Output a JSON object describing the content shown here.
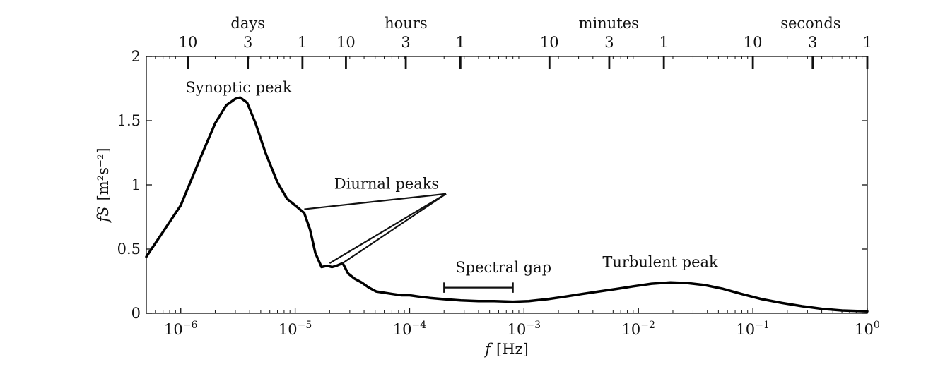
{
  "chart_data": {
    "type": "line",
    "xscale": "log",
    "xlim": [
      5e-07,
      1
    ],
    "ylim": [
      0,
      2
    ],
    "grid": false,
    "xlabel_var": "f",
    "xlabel_unit": "[Hz]",
    "ylabel_var": "fS",
    "ylabel_unit": "[m²s⁻²]",
    "x_ticks": [
      1e-06,
      1e-05,
      0.0001,
      0.001,
      0.01,
      0.1,
      1
    ],
    "x_tick_labels": [
      {
        "base": "10",
        "exp": "−6"
      },
      {
        "base": "10",
        "exp": "−5"
      },
      {
        "base": "10",
        "exp": "−4"
      },
      {
        "base": "10",
        "exp": "−3"
      },
      {
        "base": "10",
        "exp": "−2"
      },
      {
        "base": "10",
        "exp": "−1"
      },
      {
        "base": "10",
        "exp": "0"
      }
    ],
    "y_ticks": [
      0,
      0.5,
      1,
      1.5,
      2
    ],
    "y_tick_labels": [
      "0",
      "0.5",
      "1",
      "1.5",
      "2"
    ],
    "top_axis": {
      "units": [
        {
          "label": "days",
          "x": 3.86e-06
        },
        {
          "label": "hours",
          "x": 9.3e-05
        },
        {
          "label": "minutes",
          "x": 0.0055
        },
        {
          "label": "seconds",
          "x": 0.32
        }
      ],
      "ticks": [
        {
          "label": "10",
          "x": 1.157e-06
        },
        {
          "label": "3",
          "x": 3.858e-06
        },
        {
          "label": "1",
          "x": 1.157e-05
        },
        {
          "label": "10",
          "x": 2.778e-05
        },
        {
          "label": "3",
          "x": 9.259e-05
        },
        {
          "label": "1",
          "x": 0.0002778
        },
        {
          "label": "10",
          "x": 0.001667
        },
        {
          "label": "3",
          "x": 0.005556
        },
        {
          "label": "1",
          "x": 0.01667
        },
        {
          "label": "10",
          "x": 0.1
        },
        {
          "label": "3",
          "x": 0.3333
        },
        {
          "label": "1",
          "x": 1
        }
      ]
    },
    "series": [
      {
        "x": [
          5e-07,
          1e-06,
          1.5e-06,
          2e-06,
          2.5e-06,
          3e-06,
          3.3e-06,
          3.8e-06,
          4.5e-06,
          5.5e-06,
          7e-06,
          8.5e-06,
          1e-05,
          1.2e-05,
          1.35e-05,
          1.5e-05,
          1.7e-05,
          1.9e-05,
          2.1e-05,
          2.3e-05,
          2.6e-05,
          2.9e-05,
          3.3e-05,
          3.8e-05,
          4.4e-05,
          5.1e-05,
          6e-05,
          7.1e-05,
          8.5e-05,
          0.0001,
          0.00012,
          0.00015,
          0.0002,
          0.00028,
          0.0004,
          0.00055,
          0.0008,
          0.0011,
          0.0016,
          0.0023,
          0.0032,
          0.0045,
          0.0065,
          0.009,
          0.013,
          0.019,
          0.027,
          0.038,
          0.055,
          0.08,
          0.12,
          0.18,
          0.27,
          0.4,
          0.6,
          1
        ],
        "y": [
          0.44,
          0.84,
          1.22,
          1.48,
          1.62,
          1.67,
          1.68,
          1.64,
          1.48,
          1.25,
          1.02,
          0.89,
          0.84,
          0.78,
          0.65,
          0.47,
          0.36,
          0.37,
          0.36,
          0.37,
          0.39,
          0.31,
          0.27,
          0.24,
          0.2,
          0.17,
          0.16,
          0.15,
          0.14,
          0.14,
          0.13,
          0.12,
          0.11,
          0.1,
          0.095,
          0.095,
          0.09,
          0.095,
          0.11,
          0.13,
          0.15,
          0.17,
          0.19,
          0.21,
          0.23,
          0.24,
          0.235,
          0.22,
          0.19,
          0.15,
          0.11,
          0.08,
          0.055,
          0.035,
          0.022,
          0.015
        ]
      }
    ],
    "annotations": [
      {
        "text": "Synoptic peak",
        "x": 3.2e-06,
        "y": 1.72
      },
      {
        "text": "Diurnal peaks",
        "x": 6.3e-05,
        "y": 0.97
      },
      {
        "text": "Spectral gap",
        "x": 0.00066,
        "y": 0.32
      },
      {
        "text": "Turbulent peak",
        "x": 0.0155,
        "y": 0.36
      }
    ],
    "diurnal_pointers": [
      {
        "from": [
          7.9e-06,
          0.93
        ],
        "to": [
          1.2e-05,
          0.81
        ]
      },
      {
        "from": [
          7.9e-06,
          0.93
        ],
        "to": [
          2e-05,
          0.39
        ]
      },
      {
        "from": [
          7.9e-06,
          0.93
        ],
        "to": [
          2.5e-05,
          0.38
        ]
      }
    ],
    "spectral_gap_bracket": {
      "x_start": 0.0002,
      "x_end": 0.0008,
      "y": 0.2,
      "cap": 0.04
    }
  }
}
